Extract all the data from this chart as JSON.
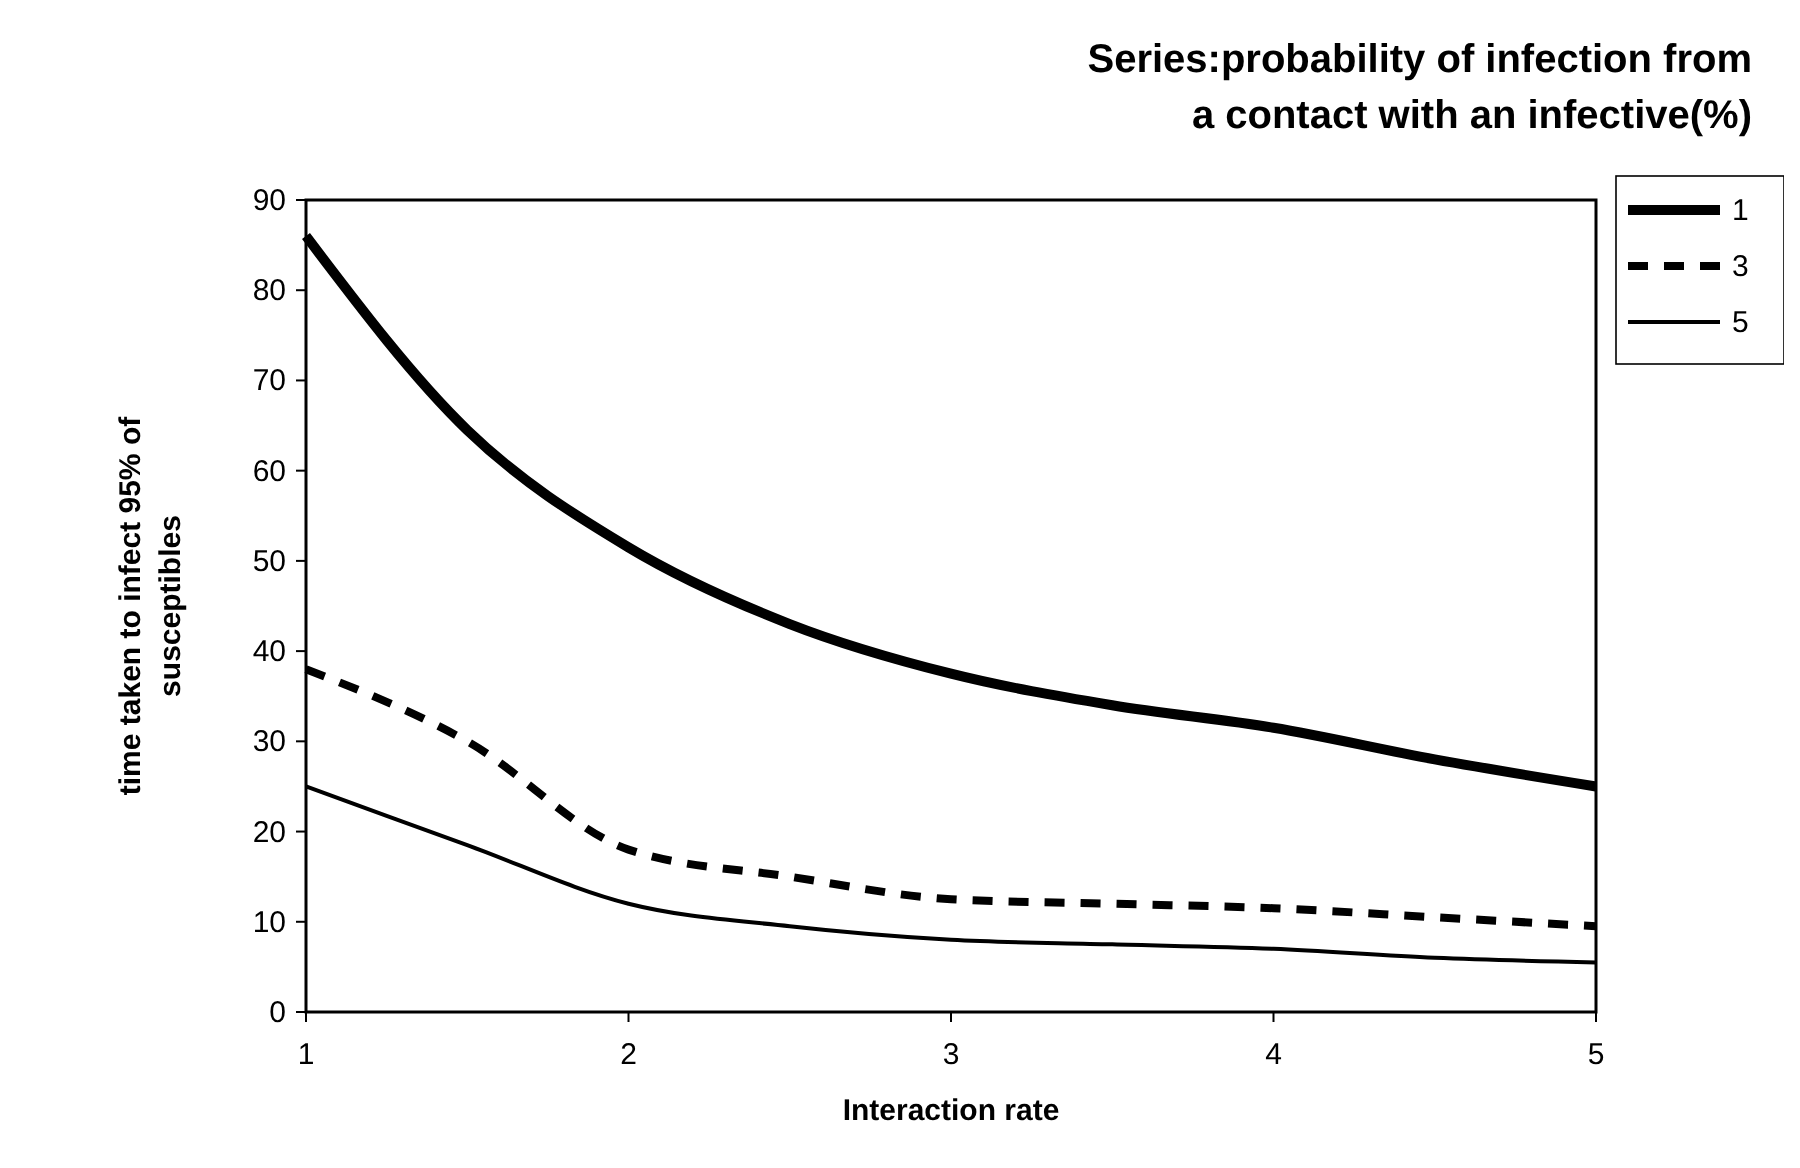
{
  "chart_data": {
    "type": "line",
    "title": "Series:probability of infection from\na contact with an infective(%)",
    "xlabel": "Interaction rate",
    "ylabel": "time taken to infect 95% of\nsusceptibles",
    "xlim": [
      1,
      5
    ],
    "xticks": [
      1,
      2,
      3,
      4,
      5
    ],
    "ylim": [
      0,
      90
    ],
    "yticks": [
      0,
      10,
      20,
      30,
      40,
      50,
      60,
      70,
      80,
      90
    ],
    "grid": false,
    "legend": "top right",
    "marker": "none",
    "series": [
      {
        "name": "1",
        "color": "#000000",
        "line_style": "solid",
        "x": [
          1,
          1.5,
          2,
          2.5,
          3,
          3.5,
          4,
          4.5,
          5
        ],
        "values": [
          86,
          64.5,
          51.5,
          43,
          37.5,
          34,
          31.5,
          28,
          25
        ]
      },
      {
        "name": "3",
        "color": "#000000",
        "line_style": "dashed",
        "x": [
          1,
          1.5,
          2,
          2.5,
          3,
          3.5,
          4,
          4.5,
          5
        ],
        "values": [
          38,
          30,
          18,
          15,
          12.5,
          12,
          11.5,
          10.5,
          9.5
        ]
      },
      {
        "name": "5",
        "color": "#000000",
        "line_style": "solid",
        "x": [
          1,
          1.5,
          2,
          2.5,
          3,
          3.5,
          4,
          4.5,
          5
        ],
        "values": [
          25,
          18.5,
          12,
          9.5,
          8,
          7.5,
          7,
          6,
          5.5
        ]
      }
    ]
  }
}
